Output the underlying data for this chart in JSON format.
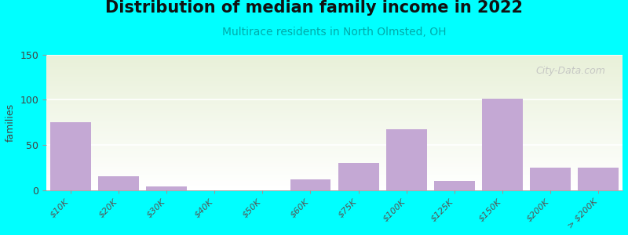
{
  "title": "Distribution of median family income in 2022",
  "subtitle": "Multirace residents in North Olmsted, OH",
  "categories": [
    "$10K",
    "$20K",
    "$30K",
    "$40K",
    "$50K",
    "$60K",
    "$75K",
    "$100K",
    "$125K",
    "$150K",
    "$200K",
    "> $200K"
  ],
  "values": [
    75,
    15,
    4,
    0,
    0,
    12,
    30,
    67,
    10,
    101,
    25,
    25
  ],
  "bar_color": "#c4a8d4",
  "bg_color": "#00ffff",
  "plot_bg_top": "#e8f0d8",
  "plot_bg_bottom": "#ffffff",
  "title_fontsize": 15,
  "subtitle_fontsize": 10,
  "ylabel": "families",
  "ylim": [
    0,
    150
  ],
  "yticks": [
    0,
    50,
    100,
    150
  ],
  "watermark": "City-Data.com"
}
